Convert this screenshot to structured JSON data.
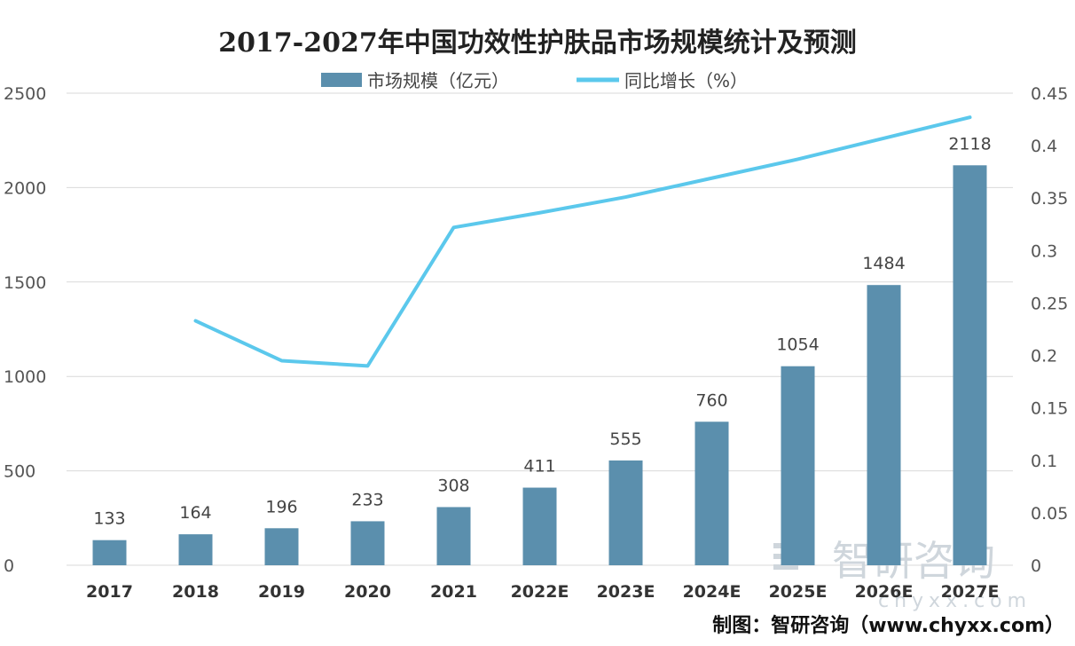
{
  "chart_data": {
    "type": "bar",
    "title": "2017-2027年中国功效性护肤品市场规模统计及预测",
    "categories": [
      "2017",
      "2018",
      "2019",
      "2020",
      "2021",
      "2022E",
      "2023E",
      "2024E",
      "2025E",
      "2026E",
      "2027E"
    ],
    "series": [
      {
        "name": "市场规模（亿元）",
        "type": "bar",
        "axis": "left",
        "values": [
          133,
          164,
          196,
          233,
          308,
          411,
          555,
          760,
          1054,
          1484,
          2118
        ],
        "color": "#5b8fad"
      },
      {
        "name": "同比增长（%）",
        "type": "line",
        "axis": "right",
        "values": [
          null,
          0.233,
          0.195,
          0.19,
          0.322,
          0.336,
          0.351,
          0.369,
          0.387,
          0.407,
          0.427
        ],
        "color": "#5bc8ec"
      }
    ],
    "ylim_left": [
      0,
      2500
    ],
    "yticks_left": [
      "0",
      "500",
      "1000",
      "1500",
      "2000",
      "2500"
    ],
    "ylim_right": [
      0,
      0.45
    ],
    "yticks_right": [
      "0",
      "0.05",
      "0.1",
      "0.15",
      "0.2",
      "0.25",
      "0.3",
      "0.35",
      "0.4",
      "0.45"
    ],
    "grid": true,
    "legend_position": "top-center"
  },
  "footer": "制图：智研咨询（www.chyxx.com）",
  "watermark": {
    "text": "智研咨询",
    "sub": "chyxx.com"
  }
}
